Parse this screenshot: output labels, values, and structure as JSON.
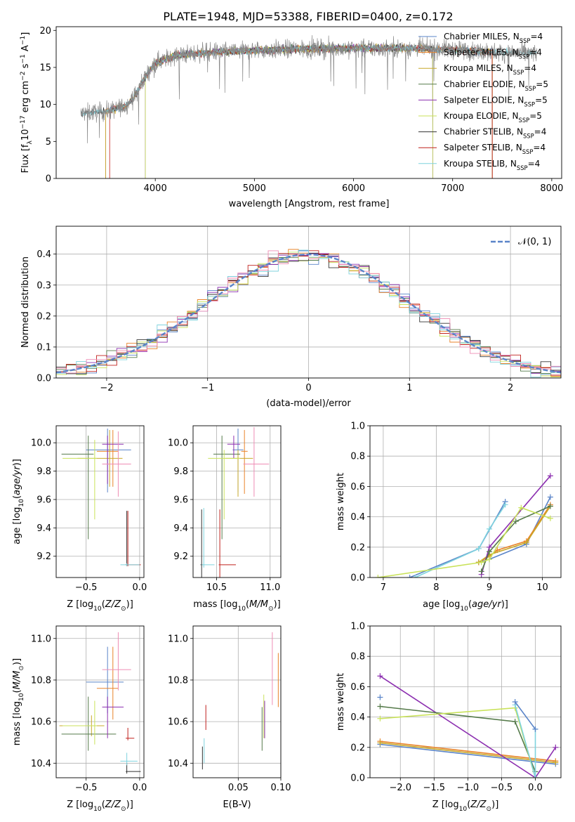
{
  "figure_title": "PLATE=1948, MJD=53388, FIBERID=0400, z=0.172",
  "chart_data": [
    {
      "id": "spectrum",
      "type": "line",
      "xlabel": "wavelength [Angstrom, rest frame]",
      "ylabel": "Flux [f_λ 10^-17 erg cm^-2 s^-1 A^-1]",
      "xlim": [
        3000,
        8100
      ],
      "ylim": [
        0,
        20.5
      ],
      "xticks": [
        4000,
        5000,
        6000,
        7000,
        8000
      ],
      "yticks": [
        0,
        5,
        10,
        15,
        20
      ],
      "grid": false,
      "legend_position": "top-right",
      "continuum_shape": {
        "x": [
          3250,
          3500,
          3700,
          3800,
          3900,
          4000,
          4200,
          4500,
          5000,
          5500,
          6000,
          6500,
          7000,
          7500,
          7850
        ],
        "y": [
          8.8,
          9.0,
          9.8,
          11.2,
          13.8,
          15.6,
          16.6,
          17.0,
          17.3,
          17.5,
          17.6,
          17.6,
          17.4,
          17.0,
          16.9
        ]
      },
      "series": [
        {
          "name": "Chabrier MILES, N_SSP=4",
          "color": "#5a84c8",
          "range": [
            3500,
            7400
          ]
        },
        {
          "name": "Salpeter MILES, N_SSP=4",
          "color": "#e8832a",
          "range": [
            3500,
            7400
          ]
        },
        {
          "name": "Kroupa MILES, N_SSP=4",
          "color": "#c8a82a",
          "range": [
            3500,
            7400
          ]
        },
        {
          "name": "Chabrier ELODIE, N_SSP=5",
          "color": "#557a4a",
          "range": [
            3900,
            6800
          ]
        },
        {
          "name": "Salpeter ELODIE, N_SSP=5",
          "color": "#8c2fb0",
          "range": [
            3900,
            6800
          ]
        },
        {
          "name": "Kroupa ELODIE, N_SSP=5",
          "color": "#c9e25a",
          "range": [
            3900,
            6800
          ]
        },
        {
          "name": "Chabrier STELIB, N_SSP=4",
          "color": "#333333",
          "range": [
            3250,
            7850
          ]
        },
        {
          "name": "Salpeter STELIB, N_SSP=4",
          "color": "#c0201c",
          "range": [
            3540,
            7400
          ]
        },
        {
          "name": "Kroupa STELIB, N_SSP=4",
          "color": "#7fd3de",
          "range": [
            3250,
            7850
          ]
        }
      ]
    },
    {
      "id": "residuals",
      "type": "line",
      "xlabel": "(data-model)/error",
      "ylabel": "Normed distribution",
      "xlim": [
        -2.5,
        2.5
      ],
      "ylim": [
        0,
        0.49
      ],
      "xticks": [
        -2,
        -1,
        0,
        1,
        2
      ],
      "yticks": [
        0.0,
        0.1,
        0.2,
        0.3,
        0.4
      ],
      "grid": true,
      "legend_position": "top-right",
      "legend": "𝒩(0, 1)",
      "reference_curve": {
        "name": "𝒩(0, 1)",
        "mean": 0,
        "sigma": 1,
        "color": "#5a84c8",
        "style": "dashed"
      },
      "bin_width": 0.1,
      "series_colors": [
        "#5a84c8",
        "#e8832a",
        "#557a4a",
        "#8c2fb0",
        "#c9e25a",
        "#333333",
        "#c0201c",
        "#7fd3de",
        "#ef8cb4"
      ]
    },
    {
      "id": "age-vs-Z",
      "type": "scatter",
      "xlabel": "Z [log10(Z/Z⊙)]",
      "ylabel": "age  [log10(age/yr)]",
      "xlim": [
        -0.78,
        0.04
      ],
      "ylim": [
        9.05,
        10.12
      ],
      "xticks": [
        -0.5,
        0.0
      ],
      "yticks": [
        9.2,
        9.4,
        9.6,
        9.8,
        10.0
      ],
      "grid": true,
      "points": [
        {
          "x": -0.3,
          "y": 9.95,
          "xerr": [
            0.2,
            0.22
          ],
          "yerr": [
            0.3,
            0.15
          ],
          "color": "#5a84c8"
        },
        {
          "x": -0.25,
          "y": 9.94,
          "xerr": [
            0.15,
            0.05
          ],
          "yerr": [
            0.25,
            0.15
          ],
          "color": "#e8832a"
        },
        {
          "x": -0.28,
          "y": 9.89,
          "xerr": [
            0.3,
            0.12
          ],
          "yerr": [
            0.2,
            0.2
          ],
          "color": "#c8a82a"
        },
        {
          "x": -0.48,
          "y": 9.92,
          "xerr": [
            0.25,
            0.05
          ],
          "yerr": [
            0.6,
            0.13
          ],
          "color": "#557a4a"
        },
        {
          "x": -0.3,
          "y": 9.99,
          "xerr": [
            0.05,
            0.15
          ],
          "yerr": [
            0.28,
            0.06
          ],
          "color": "#8c2fb0"
        },
        {
          "x": -0.42,
          "y": 9.89,
          "xerr": [
            0.3,
            0.02
          ],
          "yerr": [
            0.43,
            0.13
          ],
          "color": "#c9e25a"
        },
        {
          "x": -0.12,
          "y": 9.14,
          "xerr": [
            0.01,
            0.01
          ],
          "yerr": [
            0.01,
            0.38
          ],
          "color": "#333333"
        },
        {
          "x": -0.11,
          "y": 9.14,
          "xerr": [
            0.02,
            0.12
          ],
          "yerr": [
            0.01,
            0.38
          ],
          "color": "#c0201c"
        },
        {
          "x": -0.12,
          "y": 9.14,
          "xerr": [
            0.06,
            0.12
          ],
          "yerr": [
            0.01,
            0.01
          ],
          "color": "#7fd3de"
        },
        {
          "x": -0.2,
          "y": 9.85,
          "xerr": [
            0.15,
            0.12
          ],
          "yerr": [
            0.23,
            0.23
          ],
          "color": "#ef8cb4"
        }
      ]
    },
    {
      "id": "age-vs-mass",
      "type": "scatter",
      "xlabel": "mass [log10(M/M⊙)]",
      "ylabel": "",
      "xlim": [
        10.28,
        11.1
      ],
      "ylim": [
        9.05,
        10.12
      ],
      "xticks": [
        10.5,
        11.0
      ],
      "yticks": [
        9.2,
        9.4,
        9.6,
        9.8,
        10.0
      ],
      "grid": true,
      "points": [
        {
          "x": 10.7,
          "y": 9.95,
          "xerr": [
            0.05,
            0.05
          ],
          "yerr": [
            0.3,
            0.15
          ],
          "color": "#5a84c8"
        },
        {
          "x": 10.76,
          "y": 9.94,
          "xerr": [
            0.03,
            0.03
          ],
          "yerr": [
            0.3,
            0.15
          ],
          "color": "#e8832a"
        },
        {
          "x": 10.7,
          "y": 9.89,
          "xerr": [
            0.12,
            0.14
          ],
          "yerr": [
            0.27,
            0.06
          ],
          "color": "#c8a82a"
        },
        {
          "x": 10.55,
          "y": 9.92,
          "xerr": [
            0.08,
            0.17
          ],
          "yerr": [
            0.6,
            0.13
          ],
          "color": "#557a4a"
        },
        {
          "x": 10.66,
          "y": 9.99,
          "xerr": [
            0.06,
            0.06
          ],
          "yerr": [
            0.1,
            0.06
          ],
          "color": "#8c2fb0"
        },
        {
          "x": 10.57,
          "y": 9.89,
          "xerr": [
            0.15,
            0.15
          ],
          "yerr": [
            0.43,
            0.06
          ],
          "color": "#c9e25a"
        },
        {
          "x": 10.36,
          "y": 9.14,
          "xerr": [
            0.01,
            0.01
          ],
          "yerr": [
            0.09,
            0.39
          ],
          "color": "#333333"
        },
        {
          "x": 10.53,
          "y": 9.14,
          "xerr": [
            0.01,
            0.15
          ],
          "yerr": [
            0.09,
            0.39
          ],
          "color": "#c0201c"
        },
        {
          "x": 10.38,
          "y": 9.14,
          "xerr": [
            0.02,
            0.1
          ],
          "yerr": [
            0.02,
            0.4
          ],
          "color": "#7fd3de"
        },
        {
          "x": 10.85,
          "y": 9.85,
          "xerr": [
            0.1,
            0.14
          ],
          "yerr": [
            0.23,
            0.26
          ],
          "color": "#ef8cb4"
        }
      ]
    },
    {
      "id": "massweight-vs-age",
      "type": "line",
      "xlabel": "age  [log10(age/yr)]",
      "ylabel": "mass weight",
      "xlim": [
        6.75,
        10.35
      ],
      "ylim": [
        0,
        1.0
      ],
      "xticks": [
        7,
        8,
        9,
        10
      ],
      "yticks": [
        0.0,
        0.2,
        0.4,
        0.6,
        0.8,
        1.0
      ],
      "grid": true,
      "series": [
        {
          "color": "#5a84c8",
          "x": [
            7.5,
            8.8,
            9.3
          ],
          "y": [
            0.0,
            0.19,
            0.5
          ]
        },
        {
          "color": "#7fd3de",
          "x": [
            7.6,
            8.8,
            9.0,
            9.3
          ],
          "y": [
            0.0,
            0.19,
            0.32,
            0.48
          ]
        },
        {
          "color": "#5a84c8",
          "x": [
            8.8,
            9.0,
            9.7,
            10.15
          ],
          "y": [
            0.1,
            0.12,
            0.22,
            0.53
          ]
        },
        {
          "color": "#e8832a",
          "x": [
            8.8,
            9.0,
            9.15,
            9.7,
            10.15
          ],
          "y": [
            0.1,
            0.14,
            0.18,
            0.24,
            0.48
          ]
        },
        {
          "color": "#c8a82a",
          "x": [
            8.8,
            9.0,
            9.7,
            10.15
          ],
          "y": [
            0.1,
            0.15,
            0.23,
            0.47
          ]
        },
        {
          "color": "#8c2fb0",
          "x": [
            8.85,
            9.0,
            10.15
          ],
          "y": [
            0.02,
            0.2,
            0.67
          ]
        },
        {
          "color": "#557a4a",
          "x": [
            8.85,
            9.0,
            9.5,
            10.15
          ],
          "y": [
            0.04,
            0.17,
            0.37,
            0.47
          ]
        },
        {
          "color": "#c9e25a",
          "x": [
            6.9,
            8.85,
            9.0,
            9.6,
            10.15
          ],
          "y": [
            0.0,
            0.1,
            0.12,
            0.46,
            0.39
          ]
        }
      ]
    },
    {
      "id": "mass-vs-Z",
      "type": "scatter",
      "xlabel": "Z [log10(Z/Z⊙)]",
      "ylabel": "mass [log10(M/M⊙)]",
      "xlim": [
        -0.78,
        0.04
      ],
      "ylim": [
        10.33,
        11.06
      ],
      "xticks": [
        -0.5,
        0.0
      ],
      "yticks": [
        10.4,
        10.6,
        10.8,
        11.0
      ],
      "grid": true,
      "points": [
        {
          "x": -0.3,
          "y": 10.79,
          "xerr": [
            0.2,
            0.15
          ],
          "yerr": [
            0.15,
            0.17
          ],
          "color": "#5a84c8"
        },
        {
          "x": -0.25,
          "y": 10.76,
          "xerr": [
            0.15,
            0.05
          ],
          "yerr": [
            0.15,
            0.2
          ],
          "color": "#e8832a"
        },
        {
          "x": -0.45,
          "y": 10.58,
          "xerr": [
            0.3,
            0.12
          ],
          "yerr": [
            0.05,
            0.05
          ],
          "color": "#c8a82a"
        },
        {
          "x": -0.48,
          "y": 10.54,
          "xerr": [
            0.25,
            0.26
          ],
          "yerr": [
            0.08,
            0.18
          ],
          "color": "#557a4a"
        },
        {
          "x": -0.3,
          "y": 10.67,
          "xerr": [
            0.05,
            0.15
          ],
          "yerr": [
            0.15,
            0.05
          ],
          "color": "#8c2fb0"
        },
        {
          "x": -0.42,
          "y": 10.58,
          "xerr": [
            0.3,
            0.02
          ],
          "yerr": [
            0.09,
            0.12
          ],
          "color": "#c9e25a"
        },
        {
          "x": -0.12,
          "y": 10.36,
          "xerr": [
            0.01,
            0.13
          ],
          "yerr": [
            0.01,
            0.04
          ],
          "color": "#333333"
        },
        {
          "x": -0.11,
          "y": 10.52,
          "xerr": [
            0.02,
            0.06
          ],
          "yerr": [
            0.01,
            0.05
          ],
          "color": "#c0201c"
        },
        {
          "x": -0.12,
          "y": 10.41,
          "xerr": [
            0.06,
            0.1
          ],
          "yerr": [
            0.02,
            0.04
          ],
          "color": "#7fd3de"
        },
        {
          "x": -0.2,
          "y": 10.85,
          "xerr": [
            0.15,
            0.12
          ],
          "yerr": [
            0.1,
            0.18
          ],
          "color": "#ef8cb4"
        }
      ]
    },
    {
      "id": "mass-vs-EBV",
      "type": "scatter",
      "xlabel": "E(B-V)",
      "ylabel": "",
      "xlim": [
        -0.003,
        0.1
      ],
      "ylim": [
        10.33,
        11.06
      ],
      "xticks": [
        0.05,
        0.1
      ],
      "yticks": [
        10.4,
        10.6,
        10.8,
        11.0
      ],
      "grid": true,
      "points": [
        {
          "x": 0.09,
          "y": 10.85,
          "xerr": [
            0.0,
            0.0
          ],
          "yerr": [
            0.17,
            0.18
          ],
          "color": "#ef8cb4"
        },
        {
          "x": 0.097,
          "y": 10.79,
          "xerr": [
            0.0,
            0.0
          ],
          "yerr": [
            0.12,
            0.14
          ],
          "color": "#e8832a"
        },
        {
          "x": 0.08,
          "y": 10.6,
          "xerr": [
            0.0,
            0.0
          ],
          "yerr": [
            0.08,
            0.13
          ],
          "color": "#c9e25a"
        },
        {
          "x": 0.078,
          "y": 10.57,
          "xerr": [
            0.0,
            0.0
          ],
          "yerr": [
            0.11,
            0.1
          ],
          "color": "#557a4a"
        },
        {
          "x": 0.081,
          "y": 10.6,
          "xerr": [
            0.0,
            0.0
          ],
          "yerr": [
            0.08,
            0.1
          ],
          "color": "#8c2fb0"
        },
        {
          "x": 0.008,
          "y": 10.4,
          "xerr": [
            0.0,
            0.0
          ],
          "yerr": [
            0.03,
            0.08
          ],
          "color": "#333333"
        },
        {
          "x": 0.012,
          "y": 10.6,
          "xerr": [
            0.0,
            0.0
          ],
          "yerr": [
            0.04,
            0.08
          ],
          "color": "#c0201c"
        },
        {
          "x": 0.01,
          "y": 10.45,
          "xerr": [
            0.0,
            0.0
          ],
          "yerr": [
            0.05,
            0.07
          ],
          "color": "#7fd3de"
        }
      ]
    },
    {
      "id": "massweight-vs-Z",
      "type": "line",
      "xlabel": "Z [log10(Z/Z⊙)]",
      "ylabel": "mass weight",
      "xlim": [
        -2.45,
        0.38
      ],
      "ylim": [
        0,
        1.0
      ],
      "xticks": [
        -2.0,
        -1.5,
        -1.0,
        -0.5,
        0.0
      ],
      "yticks": [
        0.0,
        0.2,
        0.4,
        0.6,
        0.8,
        1.0
      ],
      "grid": true,
      "series": [
        {
          "color": "#5a84c8",
          "x": [
            -2.3,
            0.3
          ],
          "y": [
            0.22,
            0.09
          ]
        },
        {
          "color": "#e8832a",
          "x": [
            -2.3,
            0.3
          ],
          "y": [
            0.24,
            0.11
          ]
        },
        {
          "color": "#c8a82a",
          "x": [
            -2.3,
            0.3
          ],
          "y": [
            0.23,
            0.1
          ]
        },
        {
          "color": "#8c2fb0",
          "x": [
            -2.3,
            0.0,
            0.3
          ],
          "y": [
            0.67,
            0.0,
            0.2
          ]
        },
        {
          "color": "#557a4a",
          "x": [
            -2.3,
            -0.3,
            0.0
          ],
          "y": [
            0.47,
            0.37,
            0.04
          ]
        },
        {
          "color": "#c9e25a",
          "x": [
            -2.3,
            -0.3,
            0.0
          ],
          "y": [
            0.39,
            0.46,
            0.0
          ]
        },
        {
          "color": "#7fd3de",
          "x": [
            -0.3,
            0.0,
            0.0
          ],
          "y": [
            0.48,
            0.0,
            0.32
          ]
        },
        {
          "color": "#5a84c8",
          "x": [
            -0.3,
            0.0
          ],
          "y": [
            0.5,
            0.32
          ]
        }
      ],
      "markers": [
        {
          "x": -2.3,
          "y": 0.53,
          "color": "#5a84c8"
        }
      ]
    }
  ]
}
